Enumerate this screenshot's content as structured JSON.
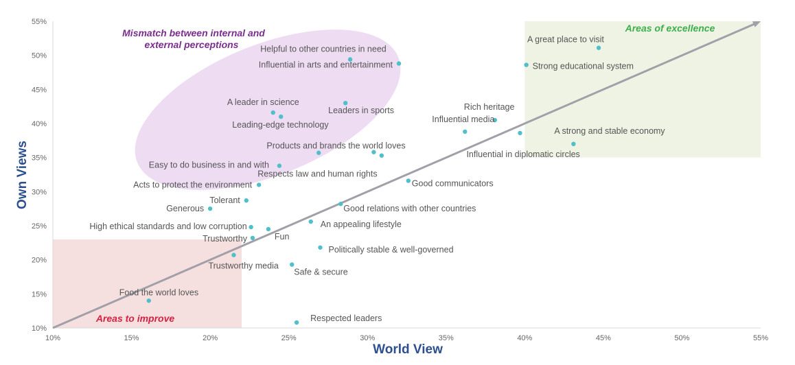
{
  "chart_data": {
    "type": "scatter",
    "xlabel": "World View",
    "ylabel": "Own Views",
    "xlim": [
      10,
      55
    ],
    "ylim": [
      10,
      55
    ],
    "xticks": [
      "10%",
      "15%",
      "20%",
      "25%",
      "30%",
      "35%",
      "40%",
      "45%",
      "50%",
      "55%"
    ],
    "yticks": [
      "10%",
      "15%",
      "20%",
      "25%",
      "30%",
      "35%",
      "40%",
      "45%",
      "50%",
      "55%"
    ],
    "grid": false,
    "reference_line": {
      "from": [
        10,
        10
      ],
      "to": [
        55,
        55
      ]
    },
    "regions": [
      {
        "name": "areas-to-improve",
        "label": "Areas to improve",
        "x": [
          10,
          22
        ],
        "y": [
          10,
          23
        ],
        "color": "#f6dfdf",
        "text_color": "#d42142"
      },
      {
        "name": "areas-of-excellence",
        "label": "Areas of excellence",
        "x": [
          40,
          55
        ],
        "y": [
          35,
          55
        ],
        "color": "#eef3e4",
        "text_color": "#3bb04a"
      },
      {
        "name": "mismatch",
        "label_lines": [
          "Mismatch between internal and",
          "external perceptions"
        ],
        "color": "#eedcf3",
        "text_color": "#7b2c8f"
      }
    ],
    "point_color": "#4fbfc9",
    "points": [
      {
        "label": "Helpful to other countries in need",
        "x": 28.9,
        "y": 49.4
      },
      {
        "label": "Influential in arts and entertainment",
        "x": 32.0,
        "y": 48.8
      },
      {
        "label": "A leader in science",
        "x": 24.0,
        "y": 41.6
      },
      {
        "label": "Leading-edge technology",
        "x": 24.5,
        "y": 41.0
      },
      {
        "label": "Leaders in sports",
        "x": 28.6,
        "y": 43.0
      },
      {
        "label": "Products and brands the world loves",
        "x": 30.4,
        "y": 35.8
      },
      {
        "label": "",
        "x": 30.9,
        "y": 35.3
      },
      {
        "label": "Respects law and human rights",
        "x": 26.9,
        "y": 35.7
      },
      {
        "label": "Easy to do business in and with",
        "x": 24.4,
        "y": 33.8
      },
      {
        "label": "Acts to protect the environment",
        "x": 23.1,
        "y": 31.0
      },
      {
        "label": "Good communicators",
        "x": 32.6,
        "y": 31.6
      },
      {
        "label": "Tolerant",
        "x": 22.3,
        "y": 28.7
      },
      {
        "label": "Generous",
        "x": 20.0,
        "y": 27.5
      },
      {
        "label": "High ethical standards and low corruption",
        "x": 22.6,
        "y": 24.8
      },
      {
        "label": "Fun",
        "x": 23.7,
        "y": 24.5
      },
      {
        "label": "Trustworthy",
        "x": 22.7,
        "y": 23.2
      },
      {
        "label": "Good relations with other countries",
        "x": 28.3,
        "y": 28.2
      },
      {
        "label": "An appealing lifestyle",
        "x": 26.4,
        "y": 25.6
      },
      {
        "label": "Politically stable & well-governed",
        "x": 27.0,
        "y": 21.8
      },
      {
        "label": "Trustworthy media",
        "x": 21.5,
        "y": 20.7
      },
      {
        "label": "Safe & secure",
        "x": 25.2,
        "y": 19.3
      },
      {
        "label": "Food the world loves",
        "x": 16.1,
        "y": 14.0
      },
      {
        "label": "Respected leaders",
        "x": 25.5,
        "y": 10.8
      },
      {
        "label": "A great place to visit",
        "x": 44.7,
        "y": 51.1
      },
      {
        "label": "Strong educational system",
        "x": 40.1,
        "y": 48.6
      },
      {
        "label": "Rich heritage",
        "x": 38.1,
        "y": 40.5
      },
      {
        "label": "Influential media",
        "x": 36.2,
        "y": 38.8
      },
      {
        "label": "Influential in diplomatic circles",
        "x": 39.7,
        "y": 38.6
      },
      {
        "label": "A strong and stable economy",
        "x": 43.1,
        "y": 37.0
      }
    ]
  }
}
